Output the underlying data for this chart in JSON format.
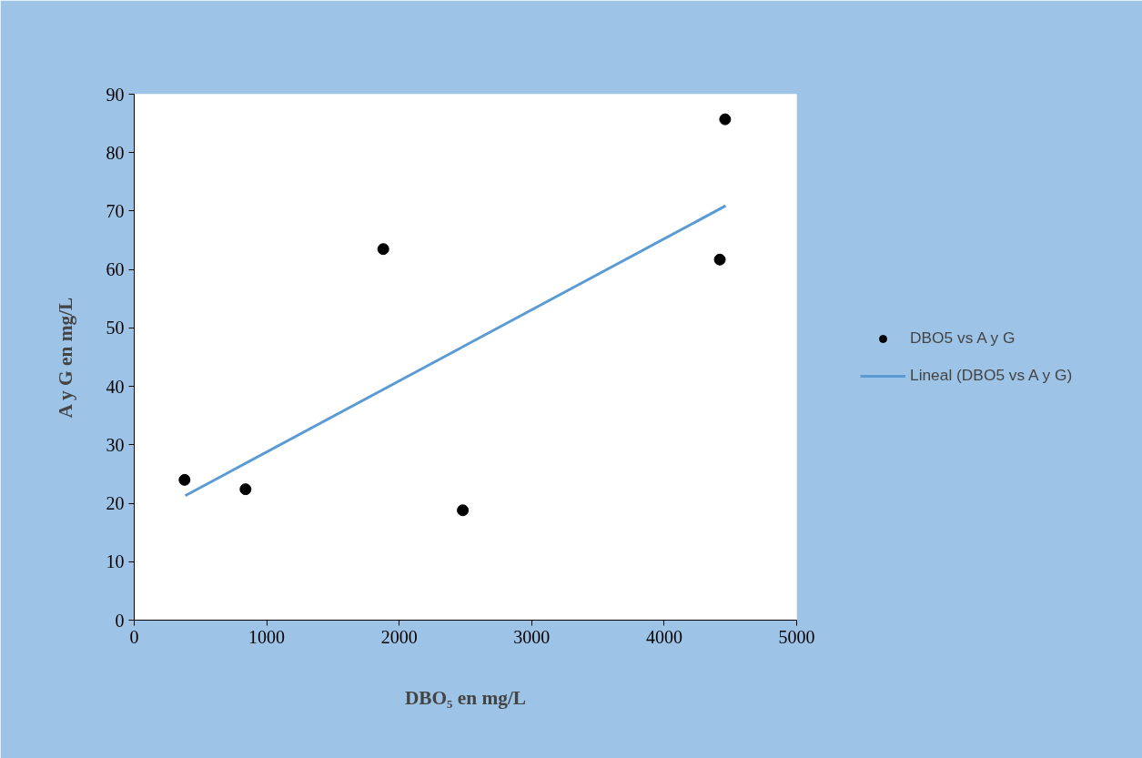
{
  "chart_data": {
    "type": "scatter",
    "xlabel": "DBO₅ en mg/L",
    "ylabel": "A y G en mg/L",
    "xlim": [
      0,
      5000
    ],
    "xticks": [
      0,
      1000,
      2000,
      3000,
      4000,
      5000
    ],
    "ylim": [
      0,
      90
    ],
    "yticks": [
      0,
      10,
      20,
      30,
      40,
      50,
      60,
      70,
      80,
      90
    ],
    "grid": false,
    "legend": "right",
    "series": [
      {
        "name": "DBO5 vs A y G",
        "marker": "circle",
        "color": "#000000",
        "x": [
          380,
          840,
          1880,
          2480,
          4420,
          4460
        ],
        "values": [
          24.0,
          22.4,
          63.5,
          18.8,
          61.7,
          85.7
        ]
      },
      {
        "name": "Lineal (DBO5 vs A y G)",
        "type": "line",
        "color": "#5b9bd5",
        "x": [
          385,
          4464
        ],
        "values": [
          21.3,
          70.9
        ]
      }
    ]
  }
}
